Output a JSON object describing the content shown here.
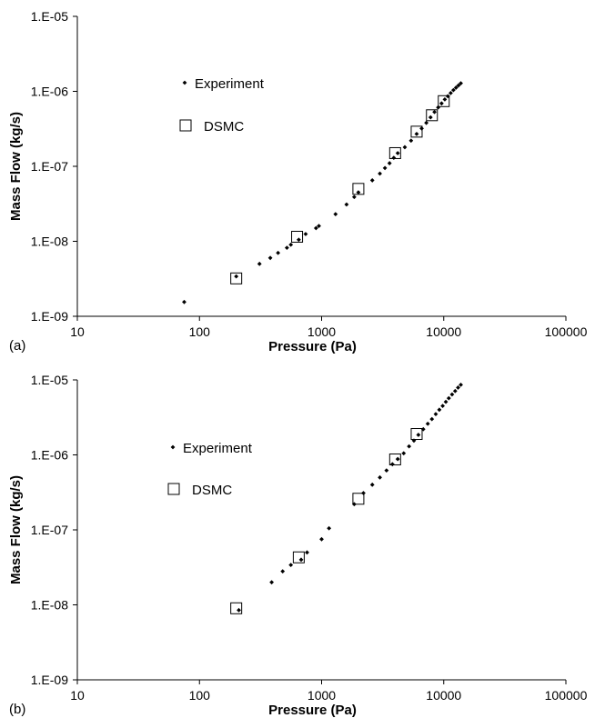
{
  "chart_data": [
    {
      "type": "scatter",
      "panel_label": "(a)",
      "xlabel": "Pressure (Pa)",
      "ylabel": "Mass Flow (kg/s)",
      "x_scale": "log",
      "y_scale": "log",
      "xlim": [
        10,
        100000
      ],
      "ylim": [
        1e-09,
        1e-05
      ],
      "x_ticks": [
        "10",
        "100",
        "1000",
        "10000",
        "100000"
      ],
      "y_ticks": [
        "1.E-09",
        "1.E-08",
        "1.E-07",
        "1.E-06",
        "1.E-05"
      ],
      "grid": false,
      "legend": "top-left",
      "series": [
        {
          "name": "Experiment",
          "marker": "small-diamond",
          "points": [
            [
              75,
              1.55e-09
            ],
            [
              200,
              3.4e-09
            ],
            [
              310,
              5e-09
            ],
            [
              380,
              6e-09
            ],
            [
              440,
              7e-09
            ],
            [
              520,
              8.2e-09
            ],
            [
              560,
              9e-09
            ],
            [
              650,
              1.05e-08
            ],
            [
              740,
              1.25e-08
            ],
            [
              900,
              1.5e-08
            ],
            [
              950,
              1.6e-08
            ],
            [
              1300,
              2.3e-08
            ],
            [
              1600,
              3.1e-08
            ],
            [
              1850,
              3.9e-08
            ],
            [
              2000,
              4.5e-08
            ],
            [
              2600,
              6.5e-08
            ],
            [
              3000,
              8e-08
            ],
            [
              3300,
              9.5e-08
            ],
            [
              3600,
              1.1e-07
            ],
            [
              3900,
              1.3e-07
            ],
            [
              4200,
              1.5e-07
            ],
            [
              4800,
              1.8e-07
            ],
            [
              5400,
              2.2e-07
            ],
            [
              6000,
              2.7e-07
            ],
            [
              6600,
              3.2e-07
            ],
            [
              7200,
              3.8e-07
            ],
            [
              7800,
              4.5e-07
            ],
            [
              8400,
              5.3e-07
            ],
            [
              9000,
              6.1e-07
            ],
            [
              9600,
              6.9e-07
            ],
            [
              10200,
              7.8e-07
            ],
            [
              10800,
              8.6e-07
            ],
            [
              11400,
              9.5e-07
            ],
            [
              12000,
              1.04e-06
            ],
            [
              12600,
              1.12e-06
            ],
            [
              13200,
              1.2e-06
            ],
            [
              13800,
              1.28e-06
            ]
          ]
        },
        {
          "name": "DSMC",
          "marker": "open-square",
          "points": [
            [
              200,
              3.2e-09
            ],
            [
              630,
              1.15e-08
            ],
            [
              2000,
              5e-08
            ],
            [
              4000,
              1.5e-07
            ],
            [
              6000,
              2.9e-07
            ],
            [
              8000,
              4.8e-07
            ],
            [
              10000,
              7.4e-07
            ]
          ]
        }
      ]
    },
    {
      "type": "scatter",
      "panel_label": "(b)",
      "xlabel": "Pressure (Pa)",
      "ylabel": "Mass Flow (kg/s)",
      "x_scale": "log",
      "y_scale": "log",
      "xlim": [
        10,
        100000
      ],
      "ylim": [
        1e-09,
        1e-05
      ],
      "x_ticks": [
        "10",
        "100",
        "1000",
        "10000",
        "100000"
      ],
      "y_ticks": [
        "1.E-09",
        "1.E-08",
        "1.E-07",
        "1.E-06",
        "1.E-05"
      ],
      "grid": false,
      "legend": "top-left",
      "series": [
        {
          "name": "Experiment",
          "marker": "small-diamond",
          "points": [
            [
              210,
              8.5e-09
            ],
            [
              390,
              2e-08
            ],
            [
              480,
              2.8e-08
            ],
            [
              560,
              3.4e-08
            ],
            [
              680,
              4e-08
            ],
            [
              760,
              5e-08
            ],
            [
              1000,
              7.5e-08
            ],
            [
              1150,
              1.05e-07
            ],
            [
              1850,
              2.2e-07
            ],
            [
              2200,
              3.1e-07
            ],
            [
              2600,
              4e-07
            ],
            [
              3000,
              5e-07
            ],
            [
              3400,
              6.2e-07
            ],
            [
              3800,
              7.5e-07
            ],
            [
              4200,
              8.8e-07
            ],
            [
              4700,
              1.05e-06
            ],
            [
              5200,
              1.3e-06
            ],
            [
              5700,
              1.55e-06
            ],
            [
              6200,
              1.85e-06
            ],
            [
              6800,
              2.2e-06
            ],
            [
              7400,
              2.6e-06
            ],
            [
              8000,
              3e-06
            ],
            [
              8600,
              3.5e-06
            ],
            [
              9200,
              4e-06
            ],
            [
              9800,
              4.5e-06
            ],
            [
              10400,
              5.1e-06
            ],
            [
              11000,
              5.7e-06
            ],
            [
              11700,
              6.4e-06
            ],
            [
              12400,
              7.1e-06
            ],
            [
              13100,
              7.9e-06
            ],
            [
              13800,
              8.6e-06
            ]
          ]
        },
        {
          "name": "DSMC",
          "marker": "open-square",
          "points": [
            [
              200,
              9e-09
            ],
            [
              650,
              4.3e-08
            ],
            [
              2000,
              2.6e-07
            ],
            [
              4000,
              8.7e-07
            ],
            [
              6000,
              1.9e-06
            ]
          ]
        }
      ]
    }
  ]
}
